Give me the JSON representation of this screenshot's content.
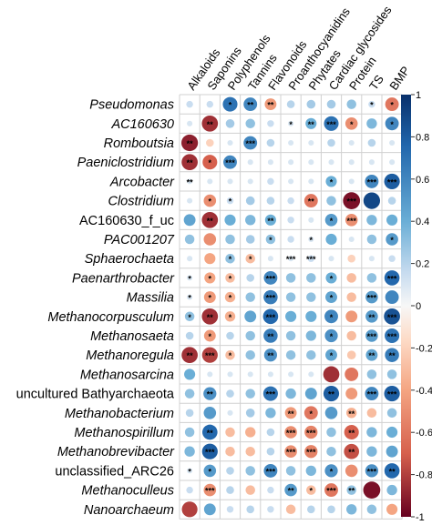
{
  "chart_data": {
    "type": "heatmap",
    "title": "",
    "columns": [
      "Alkaloids",
      "Saponins",
      "Polyphenols",
      "Tannins",
      "Flavonoids",
      "Proanthocyanidins",
      "Phytates",
      "Cardiac glycosides",
      "Protein",
      "TS",
      "BMP"
    ],
    "rows": [
      {
        "name": "Pseudomonas",
        "italic": true,
        "values": [
          0.15,
          0.15,
          0.7,
          0.6,
          -0.45,
          0.2,
          0.25,
          0.25,
          0.3,
          0.15,
          -0.6
        ],
        "stars": [
          "",
          "",
          "*",
          "**",
          "**",
          "",
          "",
          "",
          "",
          "*",
          "*"
        ]
      },
      {
        "name": "AC160630",
        "italic": true,
        "values": [
          0.1,
          -0.85,
          0.25,
          0.3,
          0.15,
          0.1,
          0.4,
          0.7,
          -0.5,
          0.35,
          0.6
        ],
        "stars": [
          "",
          "**",
          "",
          "",
          "",
          "*",
          "**",
          "***",
          "*",
          "",
          "*"
        ]
      },
      {
        "name": "Romboutsia",
        "italic": true,
        "values": [
          -0.9,
          -0.2,
          0.1,
          0.6,
          0.2,
          0.1,
          0.1,
          0.2,
          0.1,
          0.2,
          0.1
        ],
        "stars": [
          "**",
          "",
          "",
          "***",
          "",
          "",
          "",
          "",
          "",
          "",
          ""
        ]
      },
      {
        "name": "Paeniclostridium",
        "italic": true,
        "values": [
          -0.85,
          -0.7,
          0.6,
          0.1,
          0.1,
          0.1,
          0.1,
          0.1,
          0.1,
          0.1,
          0.1
        ],
        "stars": [
          "**",
          "*",
          "***",
          "",
          "",
          "",
          "",
          "",
          "",
          "",
          ""
        ]
      },
      {
        "name": "Arcobacter",
        "italic": true,
        "values": [
          0.1,
          0.1,
          0.1,
          0.1,
          0.15,
          0.1,
          0.1,
          0.4,
          0.1,
          0.6,
          0.8
        ],
        "stars": [
          "**",
          "",
          "",
          "",
          "",
          "",
          "",
          "*",
          "",
          "***",
          "***"
        ]
      },
      {
        "name": "Clostridium",
        "italic": true,
        "values": [
          0.1,
          -0.5,
          0.15,
          0.25,
          0.2,
          0.15,
          -0.6,
          0.3,
          -0.95,
          0.9,
          0.2
        ],
        "stars": [
          "",
          "*",
          "*",
          "",
          "",
          "",
          "**",
          "",
          "***",
          "",
          ""
        ]
      },
      {
        "name": "AC160630_f_uc",
        "italic": false,
        "values": [
          0.45,
          -0.85,
          0.4,
          0.35,
          0.4,
          0.15,
          0.1,
          0.5,
          -0.5,
          0.35,
          0.4
        ],
        "stars": [
          "",
          "**",
          "",
          "",
          "**",
          "",
          "",
          "*",
          "***",
          "",
          ""
        ]
      },
      {
        "name": "PAC001207",
        "italic": true,
        "values": [
          0.3,
          -0.5,
          0.3,
          0.25,
          0.3,
          0.15,
          0.1,
          0.4,
          0.1,
          0.3,
          0.5
        ],
        "stars": [
          "",
          "",
          "",
          "",
          "*",
          "",
          "*",
          "",
          "",
          "",
          "*"
        ]
      },
      {
        "name": "Sphaerochaeta",
        "italic": true,
        "values": [
          0.1,
          -0.4,
          0.3,
          -0.3,
          0.1,
          0.1,
          0.15,
          0.1,
          -0.2,
          0.1,
          0.15
        ],
        "stars": [
          "",
          "",
          "*",
          "*",
          "",
          "***",
          "***",
          "",
          "",
          "",
          ""
        ]
      },
      {
        "name": "Paenarthrobacter",
        "italic": true,
        "values": [
          0.1,
          -0.4,
          -0.3,
          0.2,
          0.6,
          0.3,
          0.3,
          0.4,
          -0.3,
          0.3,
          0.75
        ],
        "stars": [
          "*",
          "*",
          "*",
          "",
          "***",
          "",
          "",
          "*",
          "",
          "",
          "***"
        ]
      },
      {
        "name": "Massilia",
        "italic": true,
        "values": [
          0.1,
          -0.45,
          -0.35,
          0.3,
          0.65,
          0.3,
          0.3,
          0.45,
          -0.3,
          0.5,
          0.6
        ],
        "stars": [
          "*",
          "*",
          "*",
          "",
          "***",
          "",
          "",
          "*",
          "",
          "***",
          ""
        ]
      },
      {
        "name": "Methanocorpusculum",
        "italic": true,
        "values": [
          0.3,
          -0.85,
          -0.35,
          0.45,
          0.75,
          0.4,
          0.4,
          0.6,
          -0.45,
          0.5,
          0.85
        ],
        "stars": [
          "*",
          "**",
          "*",
          "",
          "***",
          "",
          "",
          "*",
          "",
          "**",
          "***"
        ]
      },
      {
        "name": "Methanosaeta",
        "italic": true,
        "values": [
          0.2,
          -0.45,
          0.2,
          0.3,
          0.65,
          0.3,
          0.35,
          0.55,
          -0.3,
          0.5,
          0.7
        ],
        "stars": [
          "",
          "*",
          "",
          "",
          "**",
          "",
          "",
          "*",
          "",
          "***",
          "***"
        ]
      },
      {
        "name": "Methanoregula",
        "italic": true,
        "values": [
          -0.85,
          -0.8,
          -0.3,
          0.3,
          0.55,
          0.3,
          0.3,
          0.45,
          -0.25,
          0.45,
          0.65
        ],
        "stars": [
          "**",
          "***",
          "*",
          "",
          "**",
          "",
          "",
          "*",
          "",
          "**",
          "**"
        ]
      },
      {
        "name": "Methanosarcina",
        "italic": true,
        "values": [
          0.4,
          0.1,
          0.1,
          0.1,
          0.1,
          0.1,
          0.1,
          -0.85,
          -0.6,
          0.3,
          0.3
        ],
        "stars": [
          "",
          "",
          "",
          "",
          "",
          "",
          "",
          "",
          "",
          "",
          ""
        ]
      },
      {
        "name": "uncultured Bathyarchaeota",
        "italic": false,
        "values": [
          0.3,
          0.55,
          0.2,
          0.3,
          0.7,
          0.35,
          0.45,
          0.8,
          -0.45,
          0.6,
          0.8
        ],
        "stars": [
          "",
          "**",
          "",
          "",
          "***",
          "",
          "",
          "**",
          "",
          "***",
          "***"
        ]
      },
      {
        "name": "Methanobacterium",
        "italic": true,
        "values": [
          0.2,
          0.5,
          0.1,
          0.25,
          0.35,
          -0.45,
          -0.6,
          0.5,
          -0.35,
          -0.3,
          0.3
        ],
        "stars": [
          "",
          "",
          "",
          "",
          "",
          "**",
          "*",
          "",
          "**",
          "",
          ""
        ]
      },
      {
        "name": "Methanospirillum",
        "italic": true,
        "values": [
          0.3,
          0.75,
          -0.3,
          -0.35,
          0.2,
          -0.5,
          -0.55,
          0.3,
          -0.7,
          0.35,
          0.4
        ],
        "stars": [
          "",
          "**",
          "",
          "",
          "",
          "***",
          "***",
          "",
          "**",
          "",
          ""
        ]
      },
      {
        "name": "Methanobrevibacter",
        "italic": true,
        "values": [
          0.35,
          0.8,
          -0.3,
          -0.3,
          0.2,
          -0.5,
          -0.55,
          0.3,
          -0.75,
          0.35,
          0.45
        ],
        "stars": [
          "",
          "***",
          "",
          "",
          "",
          "***",
          "***",
          "",
          "**",
          "",
          ""
        ]
      },
      {
        "name": "unclassified_ARC26",
        "italic": false,
        "values": [
          0.1,
          0.5,
          0.2,
          0.3,
          0.6,
          0.3,
          0.35,
          0.55,
          -0.5,
          0.55,
          0.75
        ],
        "stars": [
          "*",
          "*",
          "",
          "",
          "***",
          "",
          "",
          "*",
          "",
          "***",
          "**"
        ]
      },
      {
        "name": "Methanoculleus",
        "italic": true,
        "values": [
          0.15,
          -0.5,
          0.2,
          -0.3,
          0.15,
          0.5,
          -0.3,
          -0.6,
          0.3,
          -0.95,
          0.35
        ],
        "stars": [
          "",
          "***",
          "",
          "",
          "",
          "**",
          "*",
          "***",
          "**",
          "",
          ""
        ]
      },
      {
        "name": "Nanoarchaeum",
        "italic": true,
        "values": [
          -0.8,
          0.45,
          0.15,
          0.2,
          0.15,
          -0.3,
          0.2,
          0.2,
          0.35,
          0.3,
          -0.4
        ],
        "stars": [
          "",
          "",
          "",
          "",
          "",
          "",
          "",
          "",
          "",
          "",
          ""
        ]
      }
    ],
    "colorbar": {
      "ticks": [
        "1",
        "0.8",
        "0.6",
        "0.4",
        "0.2",
        "0",
        "-0.2",
        "-0.4",
        "-0.6",
        "-0.8",
        "-1"
      ],
      "range": [
        -1,
        1
      ]
    },
    "colors": {
      "positive": "#1a4f8f",
      "neutral": "#f7f7f7",
      "negative": "#b2182b"
    }
  }
}
